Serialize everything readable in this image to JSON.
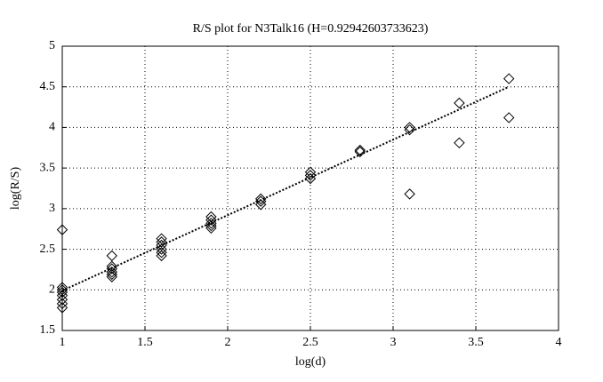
{
  "chart_data": {
    "type": "scatter",
    "title": "R/S plot for N3Talk16 (H=0.92942603733623)",
    "x_label": "log(d)",
    "y_label": "log(R/S)",
    "xlim": [
      1,
      4
    ],
    "xticks": [
      1,
      1.5,
      2,
      2.5,
      3,
      3.5,
      4
    ],
    "ylim": [
      1.5,
      5
    ],
    "yticks": [
      1.5,
      2,
      2.5,
      3,
      3.5,
      4,
      4.5,
      5
    ],
    "grid": true,
    "series": [
      {
        "marker": "diamond",
        "color": "#000000",
        "x": [
          1,
          1,
          1,
          1,
          1,
          1,
          1,
          1,
          1.3,
          1.3,
          1.3,
          1.3,
          1.3,
          1.3,
          1.6,
          1.6,
          1.6,
          1.6,
          1.6,
          1.6,
          1.9,
          1.9,
          1.9,
          1.9,
          1.9,
          2.2,
          2.2,
          2.2,
          2.5,
          2.5,
          2.5,
          2.8,
          2.8,
          3.1,
          3.1,
          3.1,
          3.4,
          3.4,
          3.7,
          3.7
        ],
        "values": [
          2.74,
          2.03,
          2.0,
          1.97,
          1.93,
          1.88,
          1.83,
          1.78,
          2.42,
          2.29,
          2.26,
          2.22,
          2.19,
          2.16,
          2.63,
          2.59,
          2.55,
          2.5,
          2.46,
          2.42,
          2.9,
          2.86,
          2.82,
          2.79,
          2.76,
          3.12,
          3.09,
          3.05,
          3.45,
          3.41,
          3.37,
          3.72,
          3.7,
          4.0,
          3.97,
          3.18,
          4.3,
          3.81,
          4.6,
          4.12
        ]
      },
      {
        "line": "dotted",
        "color": "#000000",
        "x": [
          1,
          3.7
        ],
        "values": [
          1.99,
          4.5
        ]
      }
    ]
  }
}
